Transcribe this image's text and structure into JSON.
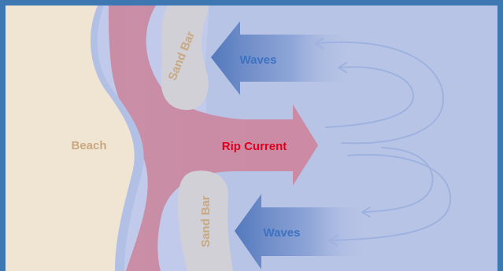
{
  "labels": {
    "beach": "Beach",
    "sand_bar_top": "Sand Bar",
    "sand_bar_bottom": "Sand Bar",
    "waves_top": "Waves",
    "waves_bottom": "Waves",
    "rip_current": "Rip Current"
  },
  "colors": {
    "frame": "#3e78b2",
    "ocean": "#b8c4e6",
    "shallow": "#c2caec",
    "beach": "#f0e4d2",
    "beach_edge": "#b2c0e6",
    "rip_current": "#c98ea6",
    "sand_bar": "#d0d0d6",
    "sand_label": "#c9a882",
    "wave_arrow": "#5b82c4",
    "wave_label": "#3d72c2",
    "rip_label": "#e0001b",
    "circulation": "#9eb2df"
  }
}
